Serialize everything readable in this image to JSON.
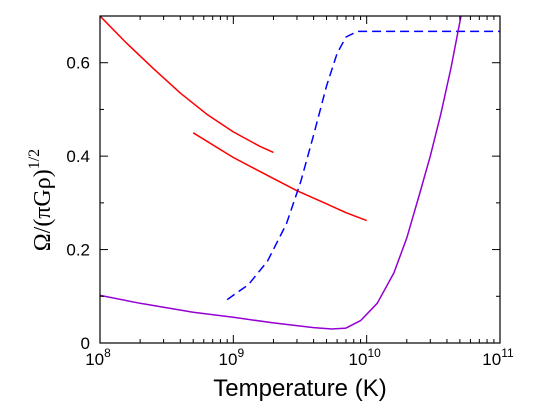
{
  "chart_data": {
    "type": "line",
    "xlabel": "Temperature (K)",
    "ylabel": "Ω/(πGρ)",
    "ylabel_exponent": "1/2",
    "x_scale": "log",
    "xlim": [
      100000000.0,
      100000000000.0
    ],
    "ylim": [
      0,
      0.7
    ],
    "grid": false,
    "x_ticks": [
      {
        "value": 100000000.0,
        "base": "10",
        "exp": "8"
      },
      {
        "value": 1000000000.0,
        "base": "10",
        "exp": "9"
      },
      {
        "value": 10000000000.0,
        "base": "10",
        "exp": "10"
      },
      {
        "value": 100000000000.0,
        "base": "10",
        "exp": "11"
      }
    ],
    "y_ticks": [
      {
        "value": 0,
        "label": "0"
      },
      {
        "value": 0.2,
        "label": "0.2"
      },
      {
        "value": 0.4,
        "label": "0.4"
      },
      {
        "value": 0.6,
        "label": "0.6"
      }
    ],
    "series": [
      {
        "color": "#ff0000",
        "dash": false,
        "points": [
          [
            100000000.0,
            0.7
          ],
          [
            158000000.0,
            0.642
          ],
          [
            250000000.0,
            0.588
          ],
          [
            400000000.0,
            0.535
          ],
          [
            630000000.0,
            0.49
          ],
          [
            1000000000.0,
            0.452
          ],
          [
            1580000000.0,
            0.421
          ],
          [
            2000000000.0,
            0.408
          ]
        ]
      },
      {
        "color": "#ff0000",
        "dash": false,
        "points": [
          [
            500000000.0,
            0.45
          ],
          [
            1000000000.0,
            0.397
          ],
          [
            2000000000.0,
            0.352
          ],
          [
            3000000000.0,
            0.326
          ],
          [
            5000000000.0,
            0.298
          ],
          [
            7000000000.0,
            0.279
          ],
          [
            10000000000.0,
            0.262
          ]
        ]
      },
      {
        "color": "#0000ff",
        "dash": true,
        "points": [
          [
            900000000.0,
            0.093
          ],
          [
            1300000000.0,
            0.125
          ],
          [
            1800000000.0,
            0.175
          ],
          [
            2500000000.0,
            0.255
          ],
          [
            3200000000.0,
            0.345
          ],
          [
            4000000000.0,
            0.445
          ],
          [
            5000000000.0,
            0.55
          ],
          [
            6000000000.0,
            0.62
          ],
          [
            7000000000.0,
            0.655
          ],
          [
            8500000000.0,
            0.667
          ],
          [
            100000000000.0,
            0.667
          ]
        ]
      },
      {
        "color": "#9400d3",
        "dash": false,
        "points": [
          [
            100000000.0,
            0.102
          ],
          [
            200000000.0,
            0.085
          ],
          [
            500000000.0,
            0.066
          ],
          [
            1000000000.0,
            0.055
          ],
          [
            2000000000.0,
            0.043
          ],
          [
            4000000000.0,
            0.033
          ],
          [
            5500000000.0,
            0.03
          ],
          [
            7000000000.0,
            0.032
          ],
          [
            9000000000.0,
            0.048
          ],
          [
            12000000000.0,
            0.085
          ],
          [
            16000000000.0,
            0.15
          ],
          [
            20000000000.0,
            0.225
          ],
          [
            25000000000.0,
            0.32
          ],
          [
            30000000000.0,
            0.4
          ],
          [
            36000000000.0,
            0.49
          ],
          [
            43000000000.0,
            0.59
          ],
          [
            51000000000.0,
            0.7
          ]
        ]
      }
    ]
  }
}
